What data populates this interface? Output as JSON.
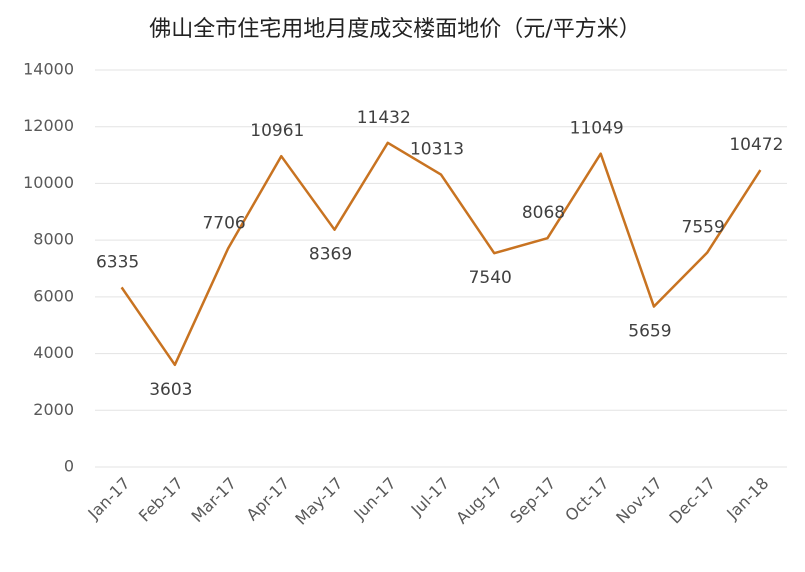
{
  "chart_data": {
    "type": "line",
    "title": "佛山全市住宅用地月度成交楼面地价（元/平方米）",
    "categories": [
      "Jan-17",
      "Feb-17",
      "Mar-17",
      "Apr-17",
      "May-17",
      "Jun-17",
      "Jul-17",
      "Aug-17",
      "Sep-17",
      "Oct-17",
      "Nov-17",
      "Dec-17",
      "Jan-18"
    ],
    "values": [
      6335,
      3603,
      7706,
      10961,
      8369,
      11432,
      10313,
      7540,
      8068,
      11049,
      5659,
      7559,
      10472
    ],
    "color": "#c87321",
    "ylim": [
      0,
      14000
    ],
    "yticks": [
      0,
      2000,
      4000,
      6000,
      8000,
      10000,
      12000,
      14000
    ],
    "grid": true
  }
}
